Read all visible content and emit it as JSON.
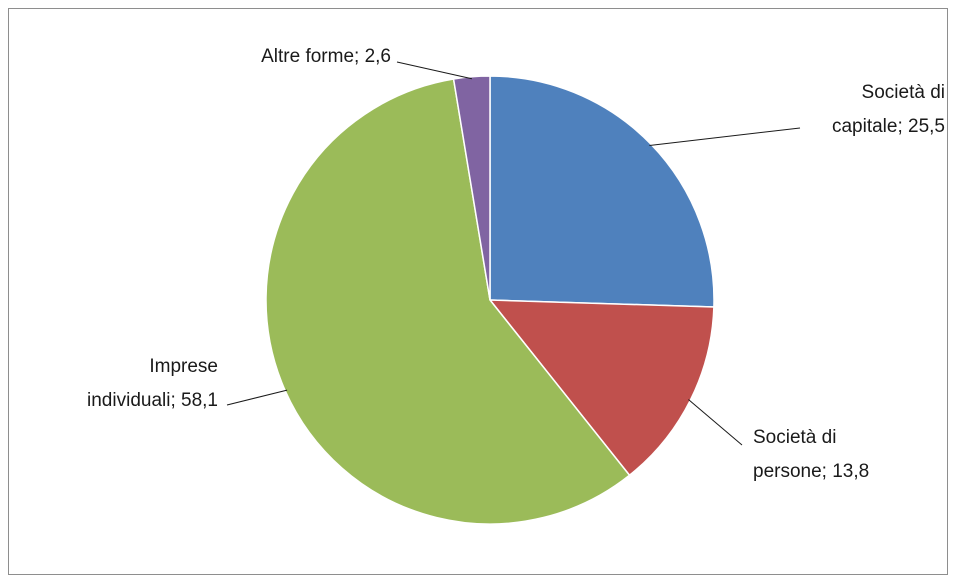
{
  "chart_data": {
    "type": "pie",
    "title": "",
    "slices": [
      {
        "name": "Società di capitale",
        "value": 25.5,
        "color": "#4F81BD",
        "label_lines": [
          "Società di",
          "capitale; 25,5"
        ]
      },
      {
        "name": "Società di persone",
        "value": 13.8,
        "color": "#C0504D",
        "label_lines": [
          "Società di",
          "persone; 13,8"
        ]
      },
      {
        "name": "Imprese individuali",
        "value": 58.1,
        "color": "#9BBB59",
        "label_lines": [
          "Imprese",
          "individuali; 58,1"
        ]
      },
      {
        "name": "Altre forme",
        "value": 2.6,
        "color": "#8064A2",
        "label_lines": [
          "Altre forme; 2,6"
        ]
      }
    ],
    "legend": "none",
    "data_labels": "category; value"
  }
}
